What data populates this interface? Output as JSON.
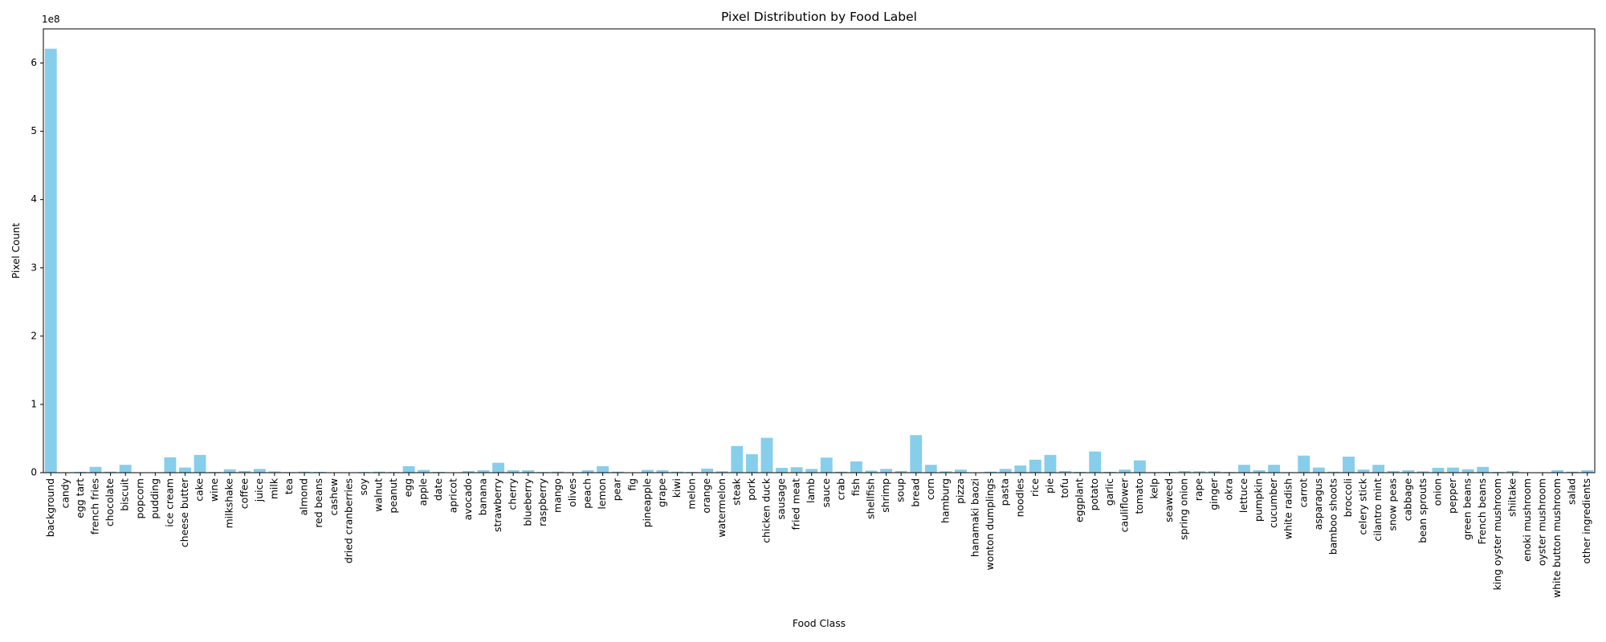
{
  "chart_data": {
    "type": "bar",
    "title": "Pixel Distribution by Food Label",
    "xlabel": "Food Class",
    "ylabel": "Pixel Count",
    "scale_label": "1e8",
    "ylim": [
      0,
      650000000
    ],
    "yticks": [
      {
        "value": 0,
        "label": "0"
      },
      {
        "value": 100000000,
        "label": "1"
      },
      {
        "value": 200000000,
        "label": "2"
      },
      {
        "value": 300000000,
        "label": "3"
      },
      {
        "value": 400000000,
        "label": "4"
      },
      {
        "value": 500000000,
        "label": "5"
      },
      {
        "value": 600000000,
        "label": "6"
      }
    ],
    "bar_color": "#87ceeb",
    "grid": false,
    "categories": [
      "background",
      "candy",
      "egg tart",
      "french fries",
      "chocolate",
      "biscuit",
      "popcorn",
      "pudding",
      "ice cream",
      "cheese butter",
      "cake",
      "wine",
      "milkshake",
      "coffee",
      "juice",
      "milk",
      "tea",
      "almond",
      "red beans",
      "cashew",
      "dried cranberries",
      "soy",
      "walnut",
      "peanut",
      "egg",
      "apple",
      "date",
      "apricot",
      "avocado",
      "banana",
      "strawberry",
      "cherry",
      "blueberry",
      "raspberry",
      "mango",
      "olives",
      "peach",
      "lemon",
      "pear",
      "fig",
      "pineapple",
      "grape",
      "kiwi",
      "melon",
      "orange",
      "watermelon",
      "steak",
      "pork",
      "chicken duck",
      "sausage",
      "fried meat",
      "lamb",
      "sauce",
      "crab",
      "fish",
      "shellfish",
      "shrimp",
      "soup",
      "bread",
      "corn",
      "hamburg",
      "pizza",
      "hanamaki baozi",
      "wonton dumplings",
      "pasta",
      "noodles",
      "rice",
      "pie",
      "tofu",
      "eggplant",
      "potato",
      "garlic",
      "cauliflower",
      "tomato",
      "kelp",
      "seaweed",
      "spring onion",
      "rape",
      "ginger",
      "okra",
      "lettuce",
      "pumpkin",
      "cucumber",
      "white radish",
      "carrot",
      "asparagus",
      "bamboo shoots",
      "broccoli",
      "celery stick",
      "cilantro mint",
      "snow peas",
      "cabbage",
      "bean sprouts",
      "onion",
      "pepper",
      "green beans",
      "French beans",
      "king oyster mushroom",
      "shiitake",
      "enoki mushroom",
      "oyster mushroom",
      "white button mushroom",
      "salad",
      "other ingredients"
    ],
    "values": [
      621000000,
      300000,
      1200000,
      8500000,
      1500000,
      11500000,
      500000,
      600000,
      22500000,
      7500000,
      26000000,
      1000000,
      5000000,
      2500000,
      5500000,
      1800000,
      800000,
      1500000,
      1200000,
      600000,
      300000,
      1000000,
      1500000,
      1000000,
      9500000,
      4000000,
      1200000,
      500000,
      2500000,
      3500000,
      14500000,
      3500000,
      3500000,
      1000000,
      1500000,
      800000,
      3500000,
      9500000,
      1500000,
      500000,
      4000000,
      3500000,
      1500000,
      1000000,
      6000000,
      2000000,
      39000000,
      27000000,
      51000000,
      7000000,
      8000000,
      5500000,
      22000000,
      1500000,
      16500000,
      3000000,
      5500000,
      2500000,
      55000000,
      11500000,
      2000000,
      4500000,
      500000,
      1500000,
      5500000,
      10500000,
      19000000,
      26000000,
      2500000,
      1200000,
      31000000,
      1200000,
      4500000,
      18000000,
      800000,
      1000000,
      2500000,
      2000000,
      2000000,
      1000000,
      11500000,
      3500000,
      11500000,
      800000,
      25000000,
      7500000,
      1500000,
      23500000,
      4500000,
      11500000,
      2500000,
      3500000,
      2000000,
      7000000,
      7500000,
      5000000,
      8500000,
      1000000,
      2500000,
      500000,
      500000,
      3500000,
      1500000,
      3500000
    ]
  }
}
